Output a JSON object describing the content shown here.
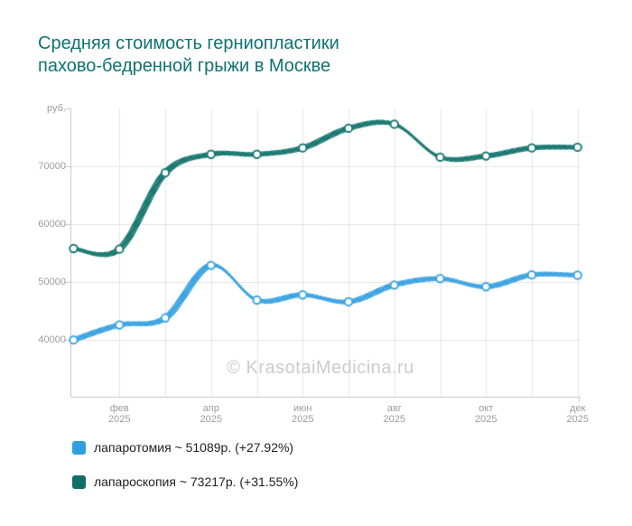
{
  "title": {
    "line1": "Средняя стоимость герниопластики",
    "line2": "пахово-бедренной грыжи в Москве"
  },
  "watermark": "© KrasotaiMedicina.ru",
  "colors": {
    "title": "#0d7370",
    "series_blue": "#3fa5e2",
    "series_teal": "#1b7a73",
    "legend_teal_swatch": "#0d6f66",
    "legend_blue_swatch": "#2f9fe0",
    "grid": "#e4e4e4",
    "axis": "#c6c6c6",
    "tick_text": "#9c9c9c",
    "legend_text": "#222222",
    "watermark_text": "#cccccc",
    "background": "#ffffff"
  },
  "chart_data": {
    "type": "line",
    "title": "Средняя стоимость герниопластики пахово-бедренной грыжи в Москве",
    "xlabel": "",
    "ylabel": "руб.",
    "grid": true,
    "legend_position": "bottom-left",
    "y_axis": {
      "unit": "руб.",
      "ticks": [
        40000,
        50000,
        60000,
        70000
      ],
      "min": 30000,
      "max": 80000
    },
    "x_axis": {
      "points": 12,
      "note": "monthly points Jan-Dec 2025, tick labels shown every second month",
      "tick_labels": [
        {
          "month": "фев",
          "year": "2025",
          "index": 1
        },
        {
          "month": "апр",
          "year": "2025",
          "index": 3
        },
        {
          "month": "июн",
          "year": "2025",
          "index": 5
        },
        {
          "month": "авг",
          "year": "2025",
          "index": 7
        },
        {
          "month": "окт",
          "year": "2025",
          "index": 9
        },
        {
          "month": "дек",
          "year": "2025",
          "index": 11
        }
      ]
    },
    "series": [
      {
        "name": "лапаротомия",
        "legend_label": "лапаротомия ~ 51089р. (+27.92%)",
        "color": "#3fa5e2",
        "swatch_color": "#2f9fe0",
        "values": [
          39900,
          42500,
          43700,
          52800,
          46800,
          47700,
          46500,
          49400,
          50500,
          49100,
          51150,
          51089
        ]
      },
      {
        "name": "лапароскопия",
        "legend_label": "лапароскопия ~ 73217р. (+31.55%)",
        "color": "#1b7a73",
        "swatch_color": "#0d6f66",
        "values": [
          55700,
          55600,
          68800,
          72000,
          72000,
          73100,
          76500,
          77200,
          71500,
          71700,
          73100,
          73217
        ]
      }
    ]
  }
}
